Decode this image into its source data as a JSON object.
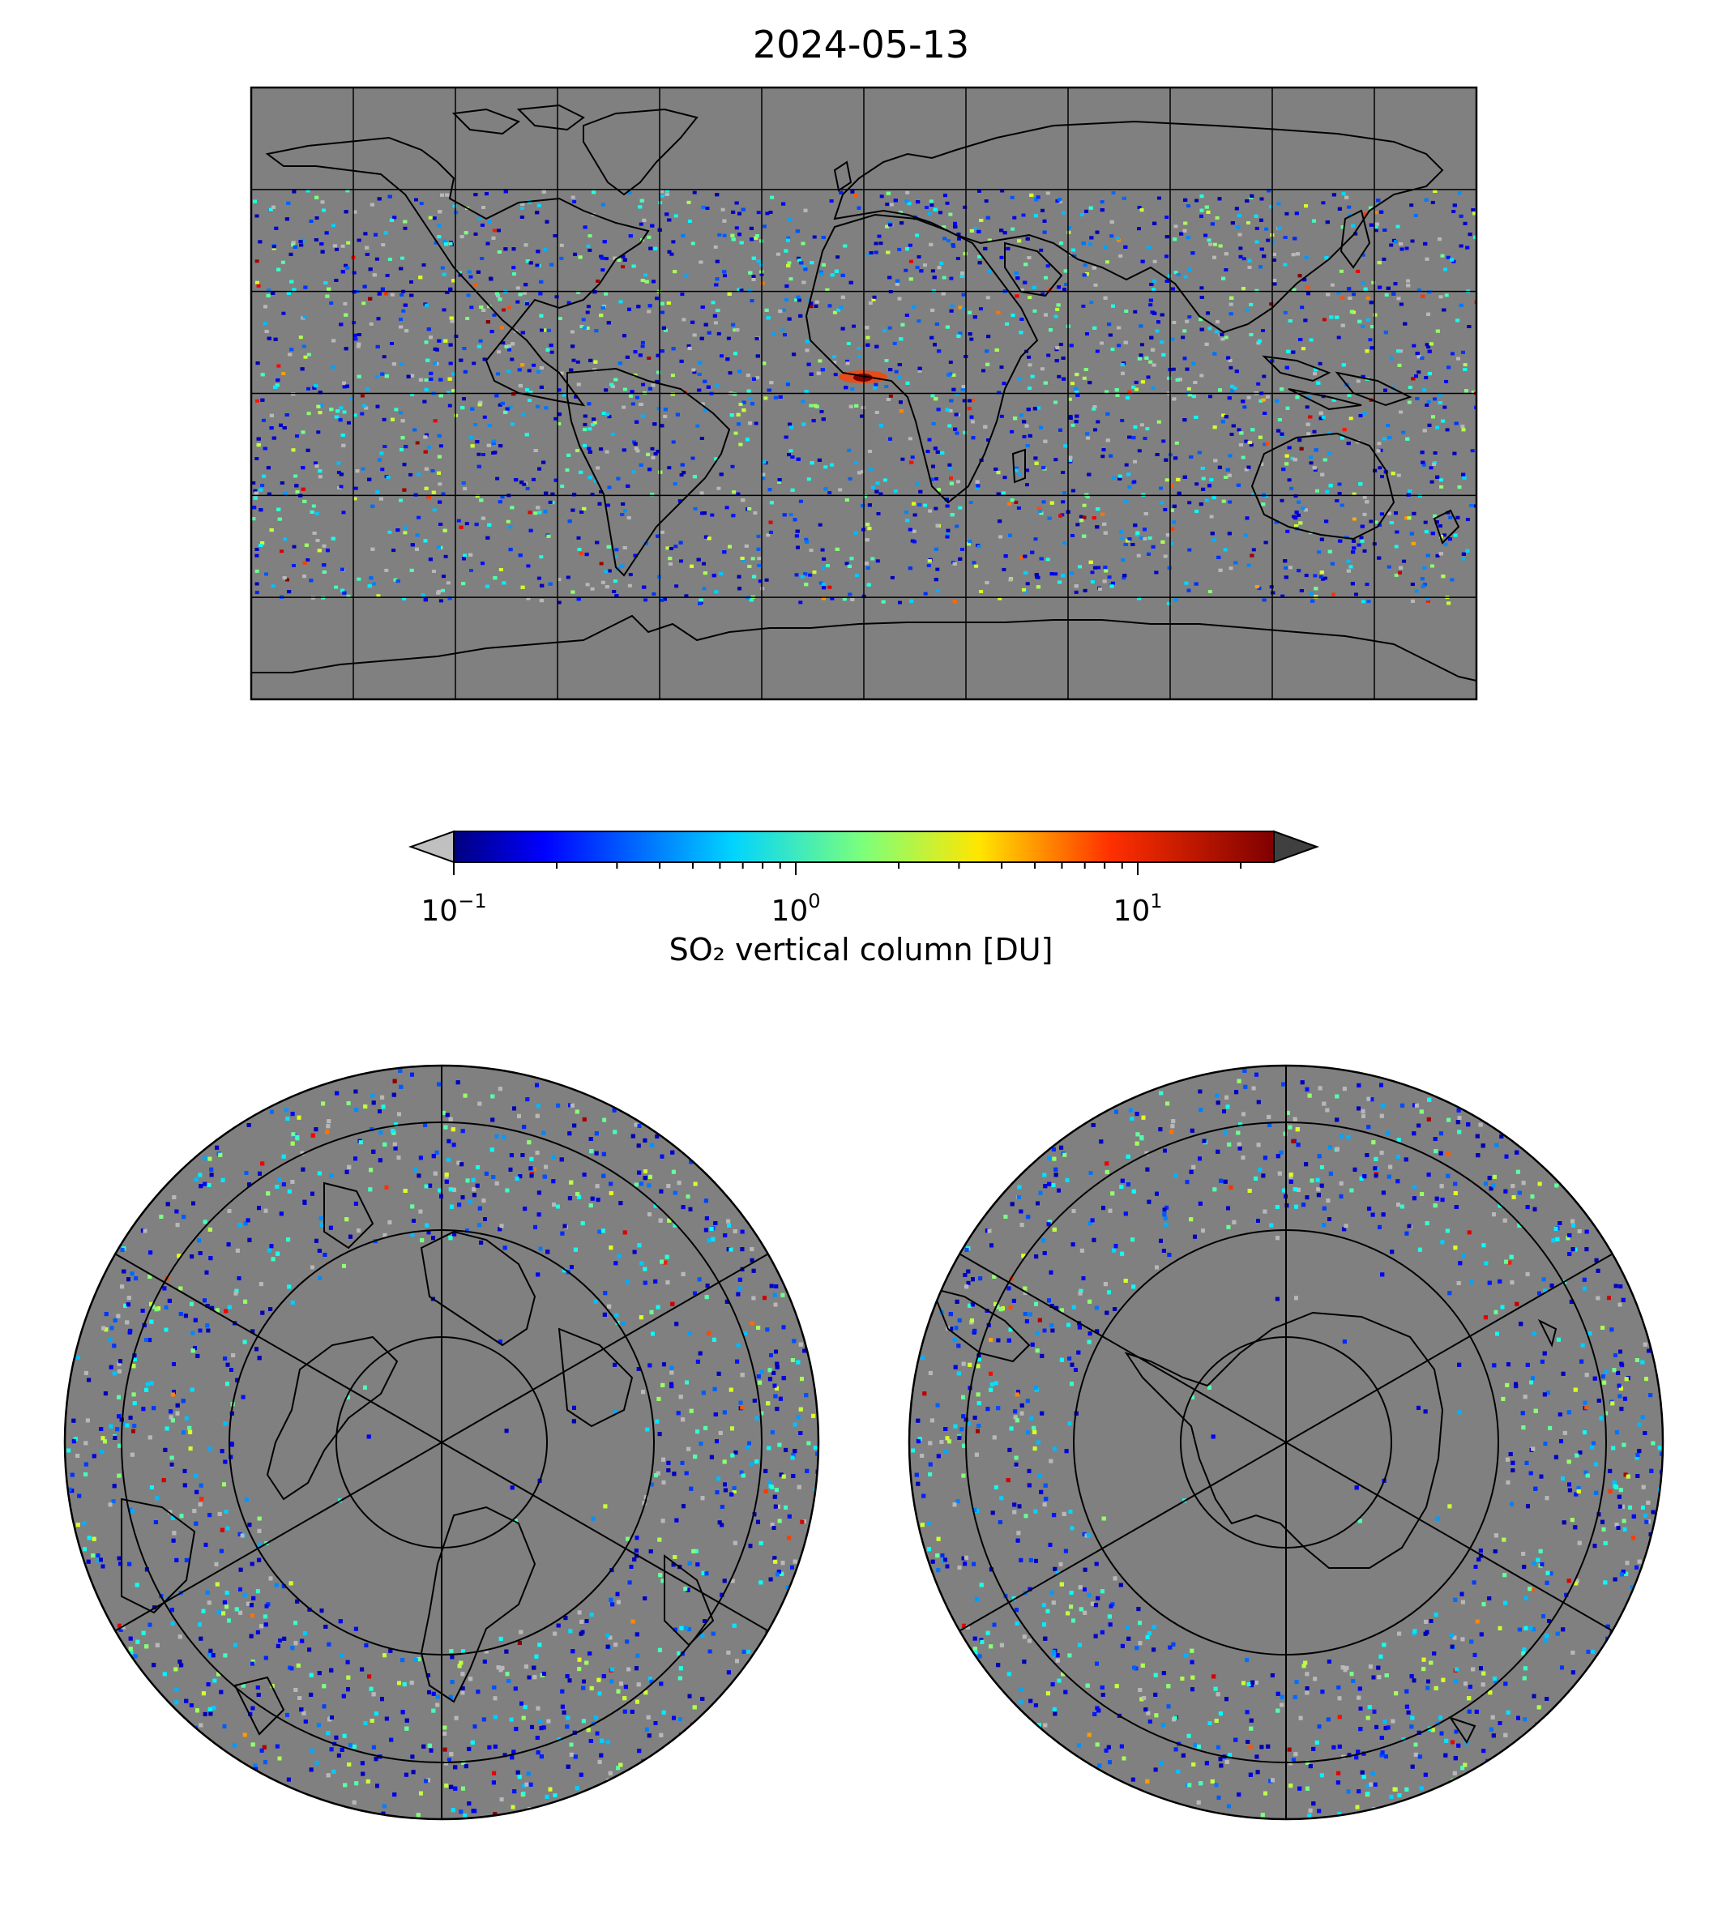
{
  "title": "2024-05-13",
  "colorbar": {
    "label": "SO₂ vertical column [DU]",
    "scale": "log",
    "range": [
      0.1,
      25
    ],
    "ticks": [
      {
        "base": "10",
        "exp": "−1",
        "value": 0.1
      },
      {
        "base": "10",
        "exp": "0",
        "value": 1
      },
      {
        "base": "10",
        "exp": "1",
        "value": 10
      }
    ],
    "colormap": "jet",
    "under_color": "#c0c0c0",
    "over_color": "#404040"
  },
  "colors": {
    "no_data": "#808080",
    "coastline": "#000000",
    "grid": "#000000"
  },
  "maps": [
    {
      "name": "global-map",
      "projection": "equirectangular"
    },
    {
      "name": "north-polar-map",
      "projection": "north-polar-stereographic"
    },
    {
      "name": "south-polar-map",
      "projection": "south-polar-stereographic"
    }
  ]
}
